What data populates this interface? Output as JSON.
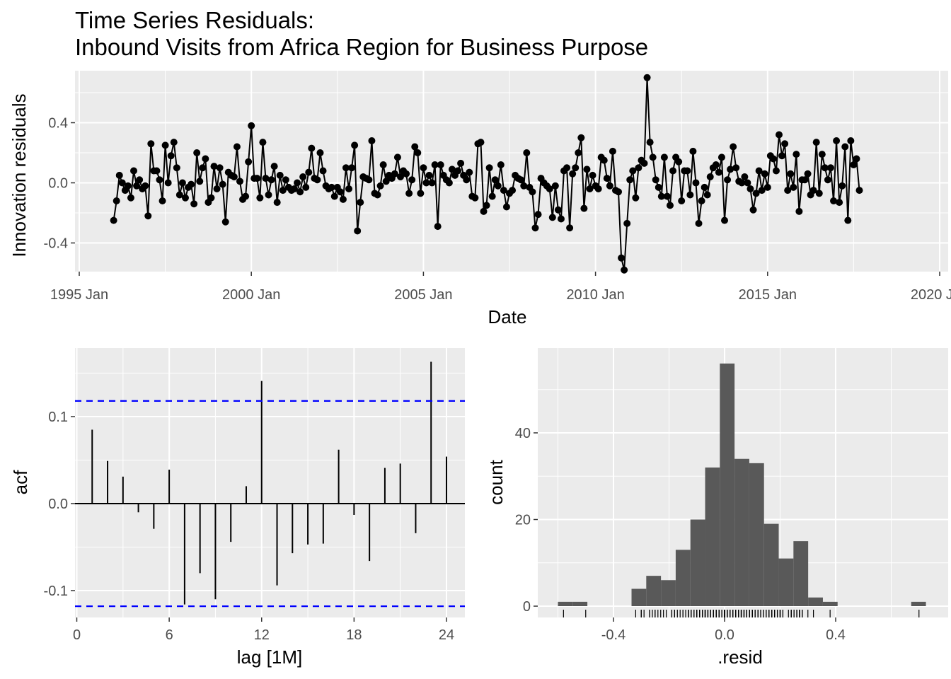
{
  "title": {
    "line1": "Time Series Residuals:",
    "line2": "Inbound Visits from Africa Region for Business Purpose"
  },
  "chart_data": [
    {
      "type": "line",
      "xlabel": "Date",
      "ylabel": "Innovation residuals",
      "x_ticks": [
        "1995 Jan",
        "2000 Jan",
        "2005 Jan",
        "2010 Jan",
        "2015 Jan",
        "2020 Jan"
      ],
      "y_ticks": [
        "-0.4",
        "0.0",
        "0.4"
      ],
      "ylim": [
        -0.6,
        0.7
      ],
      "xlim": [
        1995.0,
        2020.0
      ],
      "start": "1996 Jan",
      "frequency": "monthly",
      "series": [
        {
          "values": [
            -0.25,
            -0.12,
            0.05,
            0.0,
            -0.05,
            -0.02,
            -0.1,
            0.08,
            -0.02,
            0.02,
            -0.04,
            -0.02,
            -0.22,
            0.26,
            0.08,
            0.08,
            0.02,
            -0.12,
            0.25,
            0.0,
            0.18,
            0.27,
            0.1,
            -0.08,
            0.0,
            -0.1,
            -0.03,
            -0.01,
            -0.14,
            0.2,
            0.01,
            0.1,
            0.16,
            -0.13,
            -0.1,
            0.11,
            -0.04,
            0.1,
            -0.01,
            -0.26,
            0.07,
            0.05,
            0.04,
            0.24,
            0.01,
            -0.11,
            -0.09,
            0.14,
            0.38,
            0.03,
            0.03,
            -0.1,
            0.27,
            0.03,
            -0.08,
            0.02,
            0.11,
            -0.13,
            0.05,
            -0.05,
            0.02,
            -0.03,
            -0.05,
            -0.04,
            0.0,
            -0.06,
            0.04,
            -0.03,
            0.07,
            0.23,
            0.03,
            0.02,
            0.2,
            0.08,
            -0.02,
            -0.04,
            -0.03,
            -0.09,
            -0.03,
            -0.06,
            -0.11,
            0.1,
            -0.04,
            0.1,
            0.25,
            -0.32,
            -0.13,
            0.04,
            0.03,
            0.02,
            0.28,
            -0.07,
            -0.08,
            -0.02,
            0.12,
            0.01,
            0.05,
            0.03,
            0.06,
            0.17,
            0.04,
            0.08,
            0.06,
            -0.07,
            0.02,
            0.24,
            0.2,
            -0.07,
            0.1,
            0.0,
            0.05,
            0.0,
            0.12,
            -0.29,
            0.12,
            0.05,
            0.02,
            0.0,
            0.09,
            0.05,
            0.08,
            0.13,
            0.05,
            0.02,
            0.07,
            -0.09,
            -0.1,
            0.26,
            0.27,
            -0.19,
            -0.15,
            0.1,
            -0.09,
            0.02,
            -0.02,
            0.12,
            -0.05,
            -0.16,
            -0.07,
            -0.05,
            0.05,
            0.03,
            0.02,
            -0.02,
            0.2,
            -0.03,
            -0.06,
            -0.3,
            -0.21,
            0.03,
            0.0,
            -0.02,
            -0.04,
            -0.23,
            -0.02,
            -0.18,
            -0.24,
            0.08,
            0.1,
            -0.3,
            0.06,
            0.1,
            0.2,
            0.3,
            -0.17,
            0.09,
            -0.04,
            0.05,
            -0.02,
            -0.04,
            0.17,
            0.15,
            0.03,
            -0.02,
            0.21,
            -0.05,
            -0.06,
            -0.5,
            -0.58,
            -0.27,
            0.02,
            0.08,
            -0.1,
            0.1,
            0.15,
            0.13,
            0.7,
            0.27,
            0.17,
            0.02,
            -0.03,
            -0.09,
            0.17,
            -0.09,
            -0.15,
            0.08,
            0.17,
            0.14,
            -0.12,
            0.08,
            0.08,
            -0.08,
            0.21,
            0.0,
            -0.27,
            -0.12,
            -0.03,
            -0.08,
            0.04,
            0.1,
            0.12,
            0.07,
            0.17,
            -0.25,
            0.02,
            0.09,
            0.24,
            0.1,
            0.01,
            0.0,
            0.04,
            0.0,
            -0.04,
            -0.18,
            -0.07,
            0.08,
            -0.05,
            0.06,
            -0.03,
            0.18,
            0.16,
            0.08,
            0.32,
            0.18,
            0.26,
            -0.05,
            0.06,
            -0.03,
            0.19,
            -0.19,
            0.02,
            0.02,
            0.06,
            -0.08,
            -0.05,
            0.27,
            -0.07,
            0.19,
            0.1,
            0.02,
            0.1,
            -0.12,
            0.28,
            -0.13,
            -0.02,
            0.24,
            -0.25,
            0.28,
            0.12,
            0.16,
            -0.05
          ]
        }
      ],
      "grid": true,
      "background": "#ebebeb"
    },
    {
      "type": "bar",
      "xlabel": "lag [1M]",
      "ylabel": "acf",
      "x_ticks": [
        "0",
        "6",
        "12",
        "18",
        "24"
      ],
      "y_ticks": [
        "-0.1",
        "0.0",
        "0.1"
      ],
      "ylim": [
        -0.13,
        0.17
      ],
      "xlim": [
        0,
        25
      ],
      "categories": [
        1,
        2,
        3,
        4,
        5,
        6,
        7,
        8,
        9,
        10,
        11,
        12,
        13,
        14,
        15,
        16,
        17,
        18,
        19,
        20,
        21,
        22,
        23,
        24
      ],
      "values": [
        0.085,
        0.049,
        0.031,
        -0.01,
        -0.029,
        0.039,
        -0.116,
        -0.08,
        -0.11,
        -0.044,
        0.02,
        0.141,
        -0.094,
        -0.057,
        -0.047,
        -0.046,
        0.062,
        -0.013,
        -0.066,
        0.041,
        0.046,
        -0.034,
        0.163,
        0.054
      ],
      "confidence_bound": 0.118,
      "confidence_color": "#0000ff"
    },
    {
      "type": "bar",
      "subtype": "histogram",
      "xlabel": ".resid",
      "ylabel": "count",
      "x_ticks": [
        "-0.4",
        "0.0",
        "0.4"
      ],
      "y_ticks": [
        "0",
        "20",
        "40"
      ],
      "xlim": [
        -0.66,
        0.74
      ],
      "ylim": [
        0,
        58
      ],
      "bins": [
        {
          "x0": -0.6,
          "x1": -0.547,
          "count": 1
        },
        {
          "x0": -0.547,
          "x1": -0.494,
          "count": 1
        },
        {
          "x0": -0.335,
          "x1": -0.282,
          "count": 4
        },
        {
          "x0": -0.282,
          "x1": -0.229,
          "count": 7
        },
        {
          "x0": -0.229,
          "x1": -0.176,
          "count": 6
        },
        {
          "x0": -0.176,
          "x1": -0.123,
          "count": 13
        },
        {
          "x0": -0.123,
          "x1": -0.07,
          "count": 20
        },
        {
          "x0": -0.07,
          "x1": -0.017,
          "count": 32
        },
        {
          "x0": -0.017,
          "x1": 0.036,
          "count": 56
        },
        {
          "x0": 0.036,
          "x1": 0.089,
          "count": 34
        },
        {
          "x0": 0.089,
          "x1": 0.142,
          "count": 33
        },
        {
          "x0": 0.142,
          "x1": 0.195,
          "count": 19
        },
        {
          "x0": 0.195,
          "x1": 0.248,
          "count": 11
        },
        {
          "x0": 0.248,
          "x1": 0.301,
          "count": 15
        },
        {
          "x0": 0.301,
          "x1": 0.354,
          "count": 2
        },
        {
          "x0": 0.354,
          "x1": 0.407,
          "count": 1
        },
        {
          "x0": 0.672,
          "x1": 0.725,
          "count": 1
        }
      ],
      "rug": true
    }
  ]
}
